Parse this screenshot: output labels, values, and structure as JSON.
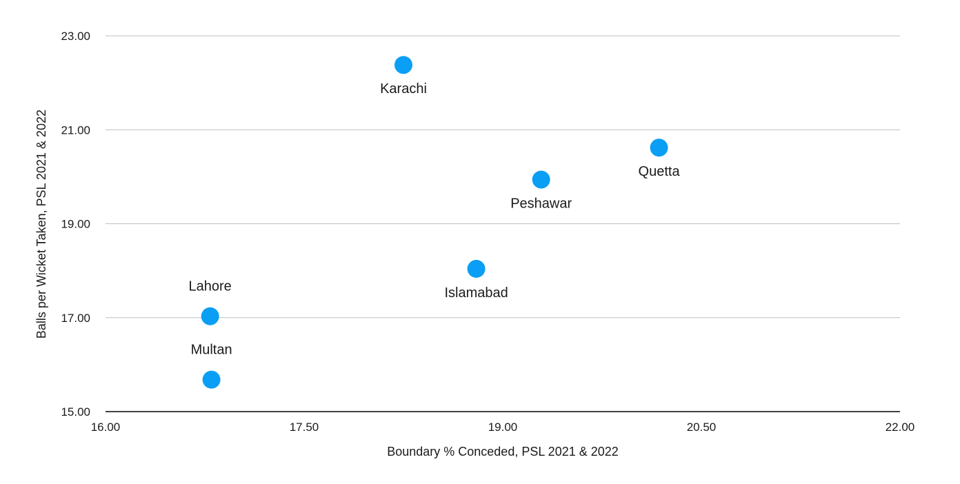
{
  "chart_data": {
    "type": "scatter",
    "xlabel": "Boundary % Conceded, PSL 2021 & 2022",
    "ylabel": "Balls per Wicket Taken,  PSL 2021 & 2022",
    "xlim": [
      16.0,
      22.0
    ],
    "ylim": [
      15.0,
      23.0
    ],
    "x_ticks": [
      16.0,
      17.5,
      19.0,
      20.5,
      22.0
    ],
    "x_tick_labels": [
      "16.00",
      "17.50",
      "19.00",
      "20.50",
      "22.00"
    ],
    "y_ticks": [
      15.0,
      17.0,
      19.0,
      21.0,
      23.0
    ],
    "y_tick_labels": [
      "15.00",
      "17.00",
      "19.00",
      "21.00",
      "23.00"
    ],
    "grid": "horizontal",
    "point_color": "#0a9ff5",
    "points": [
      {
        "label": "Karachi",
        "x": 18.25,
        "y": 22.38,
        "label_pos": "below"
      },
      {
        "label": "Quetta",
        "x": 20.18,
        "y": 20.62,
        "label_pos": "below"
      },
      {
        "label": "Peshawar",
        "x": 19.29,
        "y": 19.94,
        "label_pos": "below"
      },
      {
        "label": "Islamabad",
        "x": 18.8,
        "y": 18.04,
        "label_pos": "below"
      },
      {
        "label": "Lahore",
        "x": 16.79,
        "y": 17.03,
        "label_pos": "above"
      },
      {
        "label": "Multan",
        "x": 16.8,
        "y": 15.68,
        "label_pos": "above"
      }
    ]
  }
}
